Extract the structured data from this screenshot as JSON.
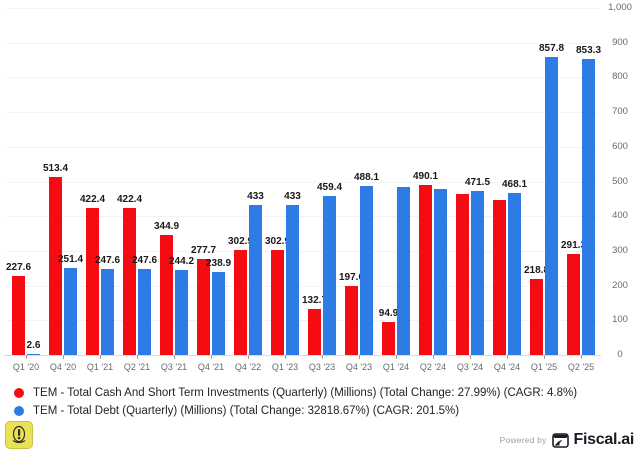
{
  "chart_data": {
    "type": "bar",
    "title": "",
    "categories": [
      "Q1 '20",
      "Q4 '20",
      "Q1 '21",
      "Q2 '21",
      "Q3 '21",
      "Q4 '21",
      "Q4 '22",
      "Q1 '23",
      "Q3 '23",
      "Q4 '23",
      "Q1 '24",
      "Q2 '24",
      "Q3 '24",
      "Q4 '24",
      "Q1 '25",
      "Q2 '25"
    ],
    "series": [
      {
        "name": "TEM - Total Cash And Short Term Investments (Quarterly) (Millions)",
        "color": "#f50c12",
        "values": [
          227.6,
          513.4,
          422.4,
          422.4,
          344.9,
          277.7,
          302.9,
          302.9,
          132.7,
          197.6,
          94.9,
          490.1,
          465,
          448,
          218.8,
          291.3
        ],
        "value_labels": [
          "227.6",
          "513.4",
          "422.4",
          "422.4",
          "344.9",
          "277.7",
          "302.9",
          "302.9",
          "132.7",
          "197.6",
          "94.9",
          "490.1",
          null,
          null,
          "218.8",
          "291.3"
        ]
      },
      {
        "name": "TEM - Total Debt (Quarterly) (Millions)",
        "color": "#2d7be5",
        "values": [
          2.6,
          251.4,
          247.6,
          247.6,
          244.2,
          238.9,
          433,
          433,
          459.4,
          488.1,
          483,
          477,
          471.5,
          468.1,
          857.8,
          853.3
        ],
        "value_labels": [
          "2.6",
          "251.4",
          "247.6",
          "247.6",
          "244.2",
          "238.9",
          "433",
          "433",
          "459.4",
          "488.1",
          null,
          null,
          "471.5",
          "468.1",
          "857.8",
          "853.3"
        ]
      }
    ],
    "ylim": [
      0,
      1000
    ],
    "yticks": [
      0,
      100,
      200,
      300,
      400,
      500,
      600,
      700,
      800,
      900,
      1000
    ],
    "ytick_labels": [
      "0",
      "100",
      "200",
      "300",
      "400",
      "500",
      "600",
      "700",
      "800",
      "900",
      "1,000"
    ],
    "y_axis_side": "right",
    "grid": "horizontal",
    "legend_position": "bottom-left"
  },
  "legend": {
    "items": [
      {
        "label": "TEM - Total Cash And Short Term Investments (Quarterly) (Millions) (Total Change: 27.99%) (CAGR: 4.8%)",
        "color": "#f50c12"
      },
      {
        "label": "TEM - Total Debt (Quarterly) (Millions) (Total Change: 32818.67%) (CAGR: 201.5%)",
        "color": "#2d7be5"
      }
    ]
  },
  "footer": {
    "powered_by": "Powered by",
    "brand": "Fiscal.ai",
    "icons": {
      "alert": "alert-icon",
      "brand_logo": "fiscal-logo-icon"
    }
  }
}
